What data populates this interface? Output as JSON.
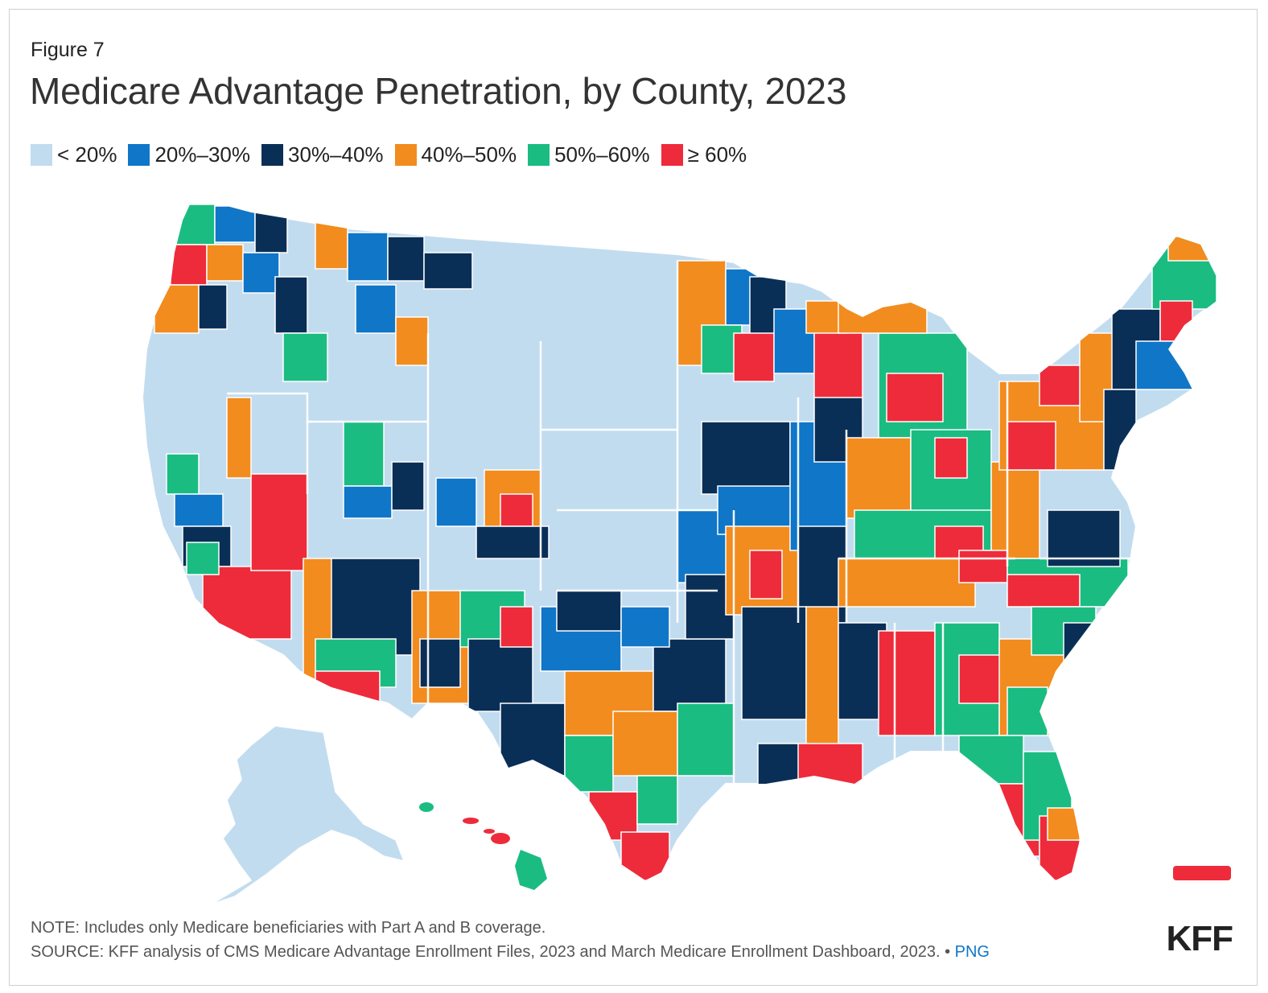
{
  "figure_label": "Figure 7",
  "title": "Medicare Advantage Penetration, by County, 2023",
  "legend": [
    {
      "label": "< 20%",
      "color": "#c2dcef"
    },
    {
      "label": "20%–30%",
      "color": "#0f76c8"
    },
    {
      "label": "30%–40%",
      "color": "#0a2f57"
    },
    {
      "label": "40%–50%",
      "color": "#f28c1e"
    },
    {
      "label": "50%–60%",
      "color": "#1abc82"
    },
    {
      "label": "≥ 60%",
      "color": "#ee2b3a"
    }
  ],
  "note": "NOTE: Includes only Medicare beneficiaries with Part A and B coverage.",
  "source": "SOURCE: KFF analysis of CMS Medicare Advantage Enrollment Files, 2023 and March Medicare Enrollment Dashboard, 2023. •",
  "png_link": "PNG",
  "logo": "KFF"
}
